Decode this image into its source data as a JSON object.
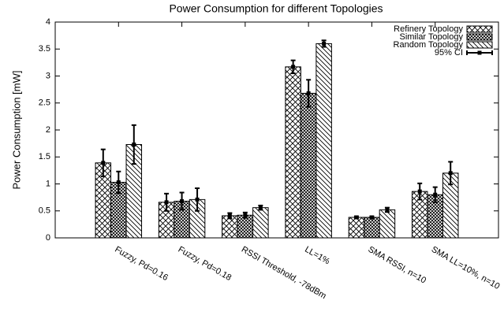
{
  "chart_data": {
    "type": "bar",
    "title": "Power Consumption for different Topologies",
    "y_label": "Power Consumption [mW]",
    "categories": [
      "Fuzzy, Pd=0.16",
      "Fuzzy, Pd=0.18",
      "RSSI Threshold, -78dBm",
      "LL=1%",
      "SMA RSSI, n=10",
      "SMA LL=10%, n=10"
    ],
    "series": [
      {
        "name": "Refinery Topology",
        "color": "#000000",
        "hatch": "cross",
        "values": [
          1.39,
          0.66,
          0.41,
          3.17,
          0.38,
          0.86
        ],
        "errors": [
          0.25,
          0.16,
          0.05,
          0.12,
          0.02,
          0.15
        ]
      },
      {
        "name": "Similar Topology",
        "color": "#000000",
        "hatch": "dense-cross",
        "values": [
          1.03,
          0.68,
          0.42,
          2.68,
          0.38,
          0.8
        ],
        "errors": [
          0.2,
          0.16,
          0.05,
          0.25,
          0.02,
          0.14
        ]
      },
      {
        "name": "Random Topology",
        "color": "#000000",
        "hatch": "diagonal",
        "values": [
          1.73,
          0.71,
          0.56,
          3.6,
          0.52,
          1.2
        ],
        "errors": [
          0.36,
          0.21,
          0.04,
          0.06,
          0.04,
          0.21
        ]
      }
    ],
    "ci_label": "95% CI",
    "ylim": [
      0,
      4
    ],
    "yticks": [
      0,
      0.5,
      1,
      1.5,
      2,
      2.5,
      3,
      3.5,
      4
    ],
    "legend": "top-right",
    "grid": false
  }
}
